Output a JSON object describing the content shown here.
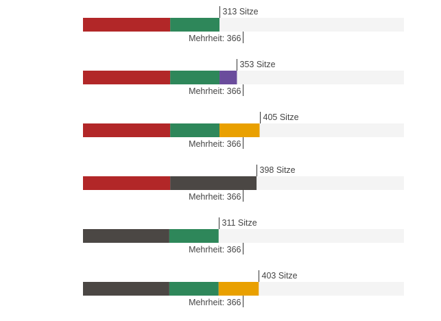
{
  "chart_data": {
    "type": "bar",
    "orientation": "horizontal-stacked",
    "xlim": [
      0,
      736
    ],
    "majority": {
      "value": 366,
      "label": "Mehrheit: 366"
    },
    "colors": {
      "red": "#B22728",
      "green": "#2E875A",
      "purple": "#6A4C9C",
      "orange": "#E9A000",
      "dark": "#4B4744",
      "track": "#F4F4F4"
    },
    "rows": [
      {
        "total": 313,
        "label": "313 Sitze",
        "segments": [
          {
            "value": 200,
            "color": "red"
          },
          {
            "value": 113,
            "color": "green"
          }
        ]
      },
      {
        "total": 353,
        "label": "353 Sitze",
        "segments": [
          {
            "value": 200,
            "color": "red"
          },
          {
            "value": 113,
            "color": "green"
          },
          {
            "value": 40,
            "color": "purple"
          }
        ]
      },
      {
        "total": 405,
        "label": "405 Sitze",
        "segments": [
          {
            "value": 200,
            "color": "red"
          },
          {
            "value": 113,
            "color": "green"
          },
          {
            "value": 92,
            "color": "orange"
          }
        ]
      },
      {
        "total": 398,
        "label": "398 Sitze",
        "segments": [
          {
            "value": 200,
            "color": "red"
          },
          {
            "value": 198,
            "color": "dark"
          }
        ]
      },
      {
        "total": 311,
        "label": "311 Sitze",
        "segments": [
          {
            "value": 198,
            "color": "dark"
          },
          {
            "value": 113,
            "color": "green"
          }
        ]
      },
      {
        "total": 403,
        "label": "403 Sitze",
        "segments": [
          {
            "value": 198,
            "color": "dark"
          },
          {
            "value": 113,
            "color": "green"
          },
          {
            "value": 92,
            "color": "orange"
          }
        ]
      }
    ]
  }
}
